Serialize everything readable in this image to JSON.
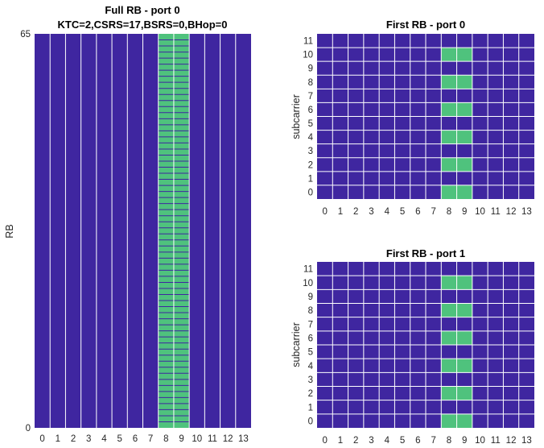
{
  "colors": {
    "background": "#3f26a0",
    "allocated": "#4fc27d",
    "grid": "#ffffff"
  },
  "chart_data": [
    {
      "type": "heatmap",
      "title": "Full RB - port 0",
      "subtitle": "KTC=2,CSRS=17,BSRS=0,BHop=0",
      "xlabel": "",
      "ylabel": "RB",
      "x_ticks": [
        "0",
        "1",
        "2",
        "3",
        "4",
        "5",
        "6",
        "7",
        "8",
        "9",
        "10",
        "11",
        "12",
        "13"
      ],
      "y_ticks": [
        "0",
        "65"
      ],
      "ylim": [
        0,
        65
      ],
      "grid": "vertical lines between symbols, horizontal lines inside allocated region",
      "allocated_symbols": [
        8,
        9
      ],
      "allocated_rb_range": [
        0,
        65
      ]
    },
    {
      "type": "heatmap",
      "title": "First RB - port 0",
      "xlabel": "",
      "ylabel": "subcarrier",
      "x_ticks": [
        "0",
        "1",
        "2",
        "3",
        "4",
        "5",
        "6",
        "7",
        "8",
        "9",
        "10",
        "11",
        "12",
        "13"
      ],
      "y_ticks": [
        "0",
        "1",
        "2",
        "3",
        "4",
        "5",
        "6",
        "7",
        "8",
        "9",
        "10",
        "11"
      ],
      "grid": "on",
      "allocated_symbols": [
        8,
        9
      ],
      "allocated_subcarriers": [
        0,
        2,
        4,
        6,
        8,
        10
      ]
    },
    {
      "type": "heatmap",
      "title": "First RB - port 1",
      "xlabel": "",
      "ylabel": "subcarrier",
      "x_ticks": [
        "0",
        "1",
        "2",
        "3",
        "4",
        "5",
        "6",
        "7",
        "8",
        "9",
        "10",
        "11",
        "12",
        "13"
      ],
      "y_ticks": [
        "0",
        "1",
        "2",
        "3",
        "4",
        "5",
        "6",
        "7",
        "8",
        "9",
        "10",
        "11"
      ],
      "grid": "on",
      "allocated_symbols": [
        8,
        9
      ],
      "allocated_subcarriers": [
        0,
        2,
        4,
        6,
        8,
        10
      ]
    }
  ]
}
